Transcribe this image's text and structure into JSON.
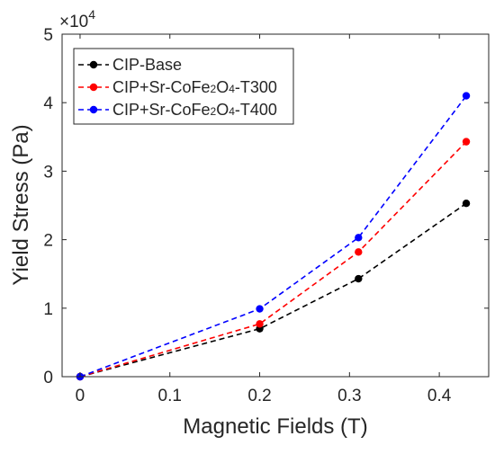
{
  "chart_data": {
    "type": "line",
    "title": "",
    "xlabel": "Magnetic Fields (T)",
    "ylabel": "Yield Stress (Pa)",
    "y_multiplier_base": "×10",
    "y_multiplier_exponent": "4",
    "xlim": [
      -0.02,
      0.455
    ],
    "ylim": [
      0,
      50000
    ],
    "x_ticks": [
      0,
      0.1,
      0.2,
      0.3,
      0.4
    ],
    "x_tick_labels": [
      "0",
      "0.1",
      "0.2",
      "0.3",
      "0.4"
    ],
    "y_ticks": [
      0,
      10000,
      20000,
      30000,
      40000,
      50000
    ],
    "y_tick_labels": [
      "0",
      "1",
      "2",
      "3",
      "4",
      "5"
    ],
    "grid": false,
    "legend_position": "top-left",
    "line_style": "dashed",
    "x": [
      0,
      0.2,
      0.31,
      0.43
    ],
    "series": [
      {
        "name_parts": [
          "CIP-Base"
        ],
        "color": "#000000",
        "values": [
          0,
          7000,
          14300,
          25300
        ]
      },
      {
        "name_parts": [
          "CIP+Sr-CoFe",
          "2",
          "O",
          "4",
          "-T300"
        ],
        "color": "#ff0000",
        "values": [
          0,
          7700,
          18200,
          34300
        ]
      },
      {
        "name_parts": [
          "CIP+Sr-CoFe",
          "2",
          "O",
          "4",
          "-T400"
        ],
        "color": "#0000ff",
        "values": [
          0,
          9900,
          20300,
          41000
        ]
      }
    ]
  }
}
